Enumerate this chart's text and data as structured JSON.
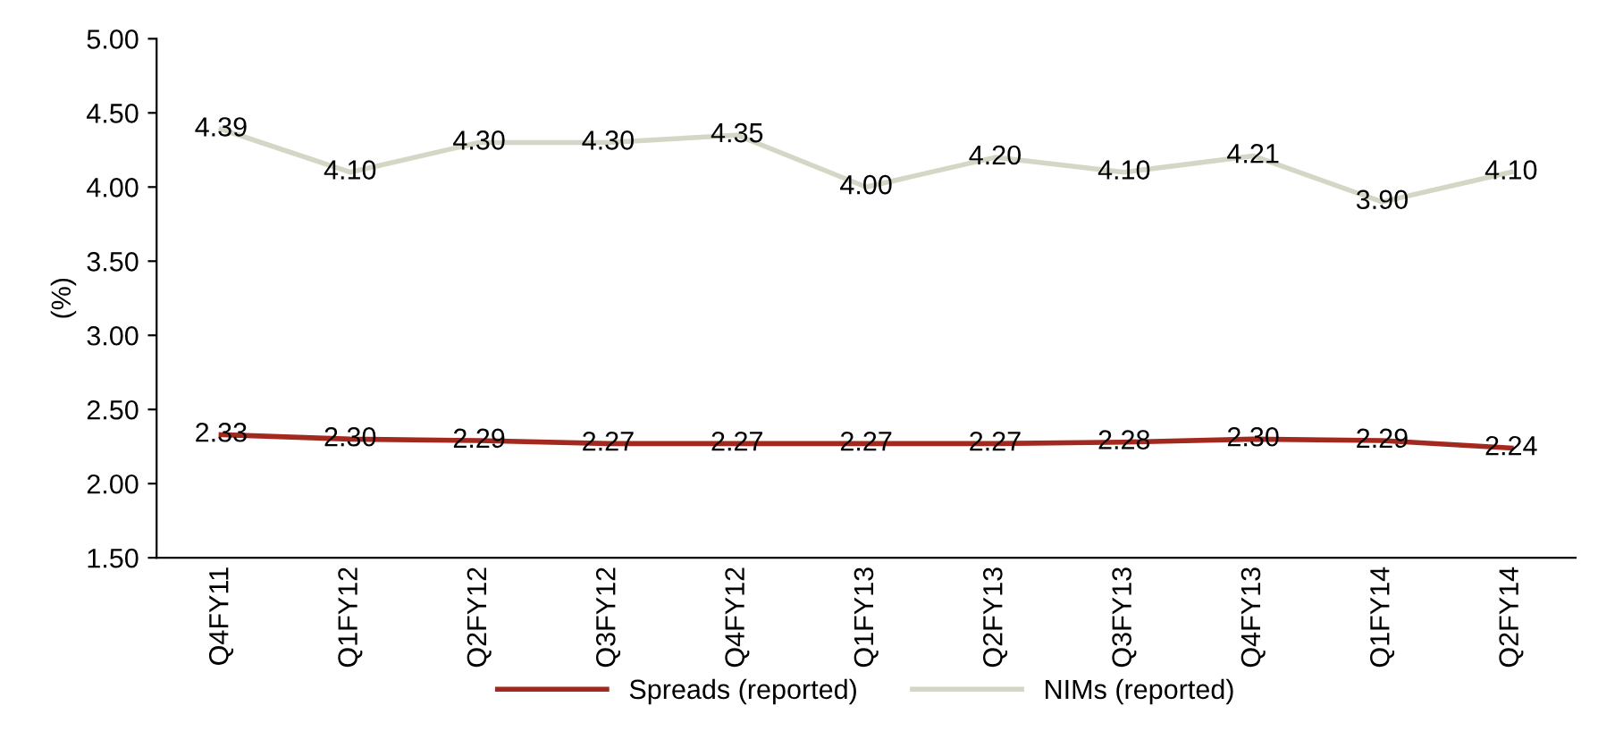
{
  "chart_data": {
    "type": "line",
    "ylabel": "(%)",
    "categories": [
      "Q4FY11",
      "Q1FY12",
      "Q2FY12",
      "Q3FY12",
      "Q4FY12",
      "Q1FY13",
      "Q2FY13",
      "Q3FY13",
      "Q4FY13",
      "Q1FY14",
      "Q2FY14"
    ],
    "series": [
      {
        "name": "Spreads (reported)",
        "color": "#a3281e",
        "values": [
          2.33,
          2.3,
          2.29,
          2.27,
          2.27,
          2.27,
          2.27,
          2.28,
          2.3,
          2.29,
          2.24
        ],
        "value_labels": [
          "2.33",
          "2.30",
          "2.29",
          "2.27",
          "2.27",
          "2.27",
          "2.27",
          "2.28",
          "2.30",
          "2.29",
          "2.24"
        ]
      },
      {
        "name": "NIMs (reported)",
        "color": "#d6d6c6",
        "values": [
          4.39,
          4.1,
          4.3,
          4.3,
          4.35,
          4.0,
          4.2,
          4.1,
          4.21,
          3.9,
          4.1
        ],
        "value_labels": [
          "4.39",
          "4.10",
          "4.30",
          "4.30",
          "4.35",
          "4.00",
          "4.20",
          "4.10",
          "4.21",
          "3.90",
          "4.10"
        ]
      }
    ],
    "ylim": [
      1.5,
      5.0
    ],
    "yticks": [
      {
        "value": 1.5,
        "label": "1.50"
      },
      {
        "value": 2.0,
        "label": "2.00"
      },
      {
        "value": 2.5,
        "label": "2.50"
      },
      {
        "value": 3.0,
        "label": "3.00"
      },
      {
        "value": 3.5,
        "label": "3.50"
      },
      {
        "value": 4.0,
        "label": "4.00"
      },
      {
        "value": 4.5,
        "label": "4.50"
      },
      {
        "value": 5.0,
        "label": "5.00"
      }
    ],
    "grid": false,
    "legend": "bottom",
    "marker": "none",
    "line_style": "solid"
  }
}
